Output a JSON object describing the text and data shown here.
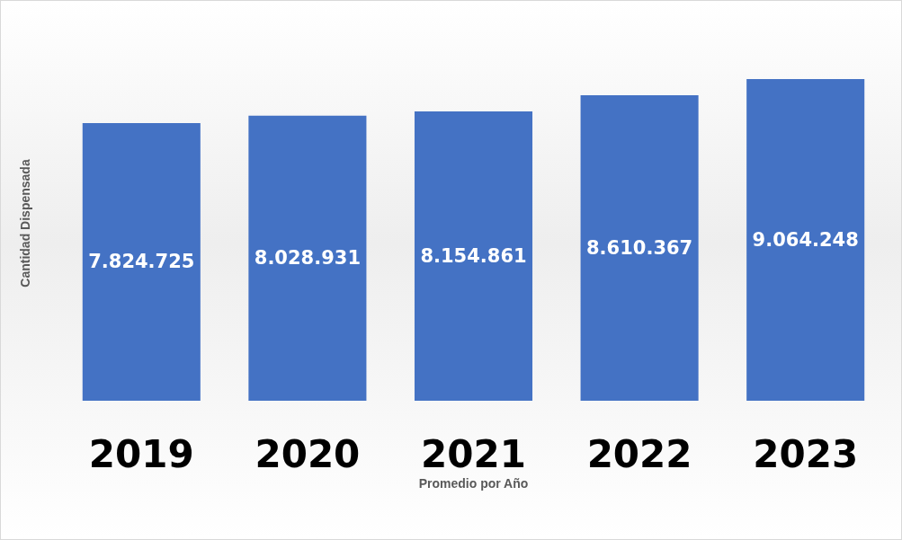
{
  "chart_data": {
    "type": "bar",
    "xlabel": "Promedio por Año",
    "ylabel": "Cantidad Dispensada",
    "categories": [
      "2019",
      "2020",
      "2021",
      "2022",
      "2023"
    ],
    "values": [
      7824725,
      8028931,
      8154861,
      8610367,
      9064248
    ],
    "value_labels": [
      "7.824.725",
      "8.028.931",
      "8.154.861",
      "8.610.367",
      "9.064.248"
    ],
    "color": "#4472c4",
    "tick_labels": "x",
    "grid": false
  }
}
